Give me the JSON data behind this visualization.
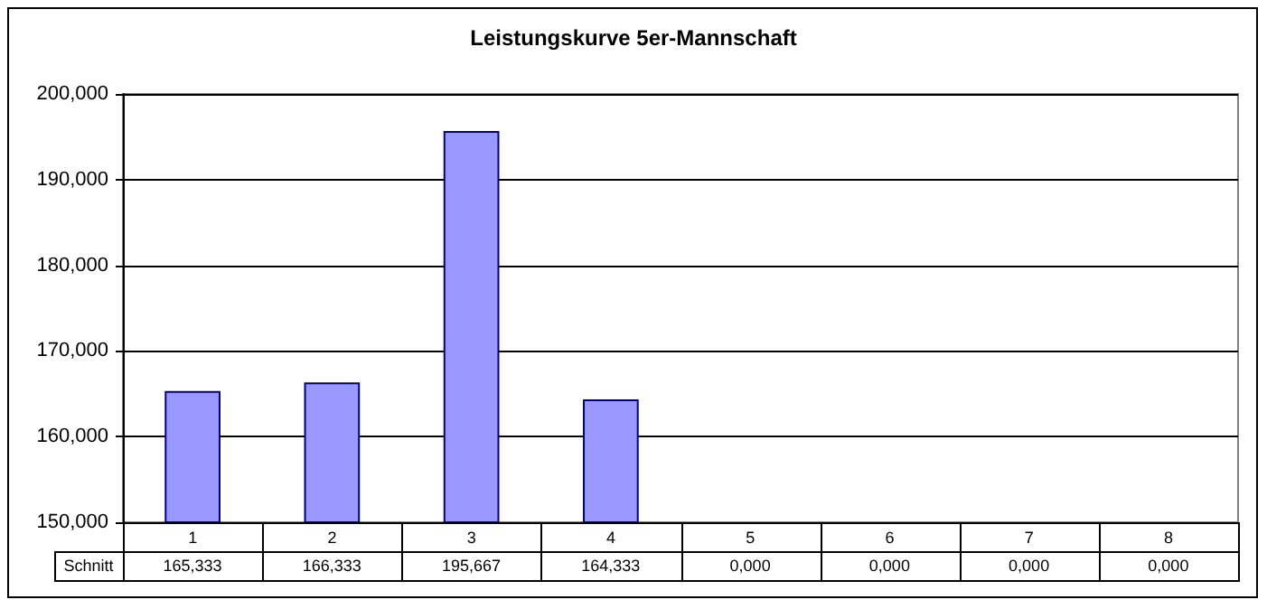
{
  "chart_data": {
    "type": "bar",
    "title": "Leistungskurve 5er-Mannschaft",
    "categories": [
      "1",
      "2",
      "3",
      "4",
      "5",
      "6",
      "7",
      "8"
    ],
    "series": [
      {
        "name": "Schnitt",
        "color": "#9999ff",
        "values": [
          165.333,
          166.333,
          195.667,
          164.333,
          null,
          null,
          null,
          null
        ],
        "value_labels": [
          "165,333",
          "166,333",
          "195,667",
          "164,333",
          "0,000",
          "0,000",
          "0,000",
          "0,000"
        ]
      }
    ],
    "ylim": [
      150,
      200
    ],
    "yticks": [
      {
        "value": 150,
        "label": "150,000"
      },
      {
        "value": 160,
        "label": "160,000"
      },
      {
        "value": 170,
        "label": "170,000"
      },
      {
        "value": 180,
        "label": "180,000"
      },
      {
        "value": 190,
        "label": "190,000"
      },
      {
        "value": 200,
        "label": "200,000"
      }
    ],
    "grid": "y"
  }
}
